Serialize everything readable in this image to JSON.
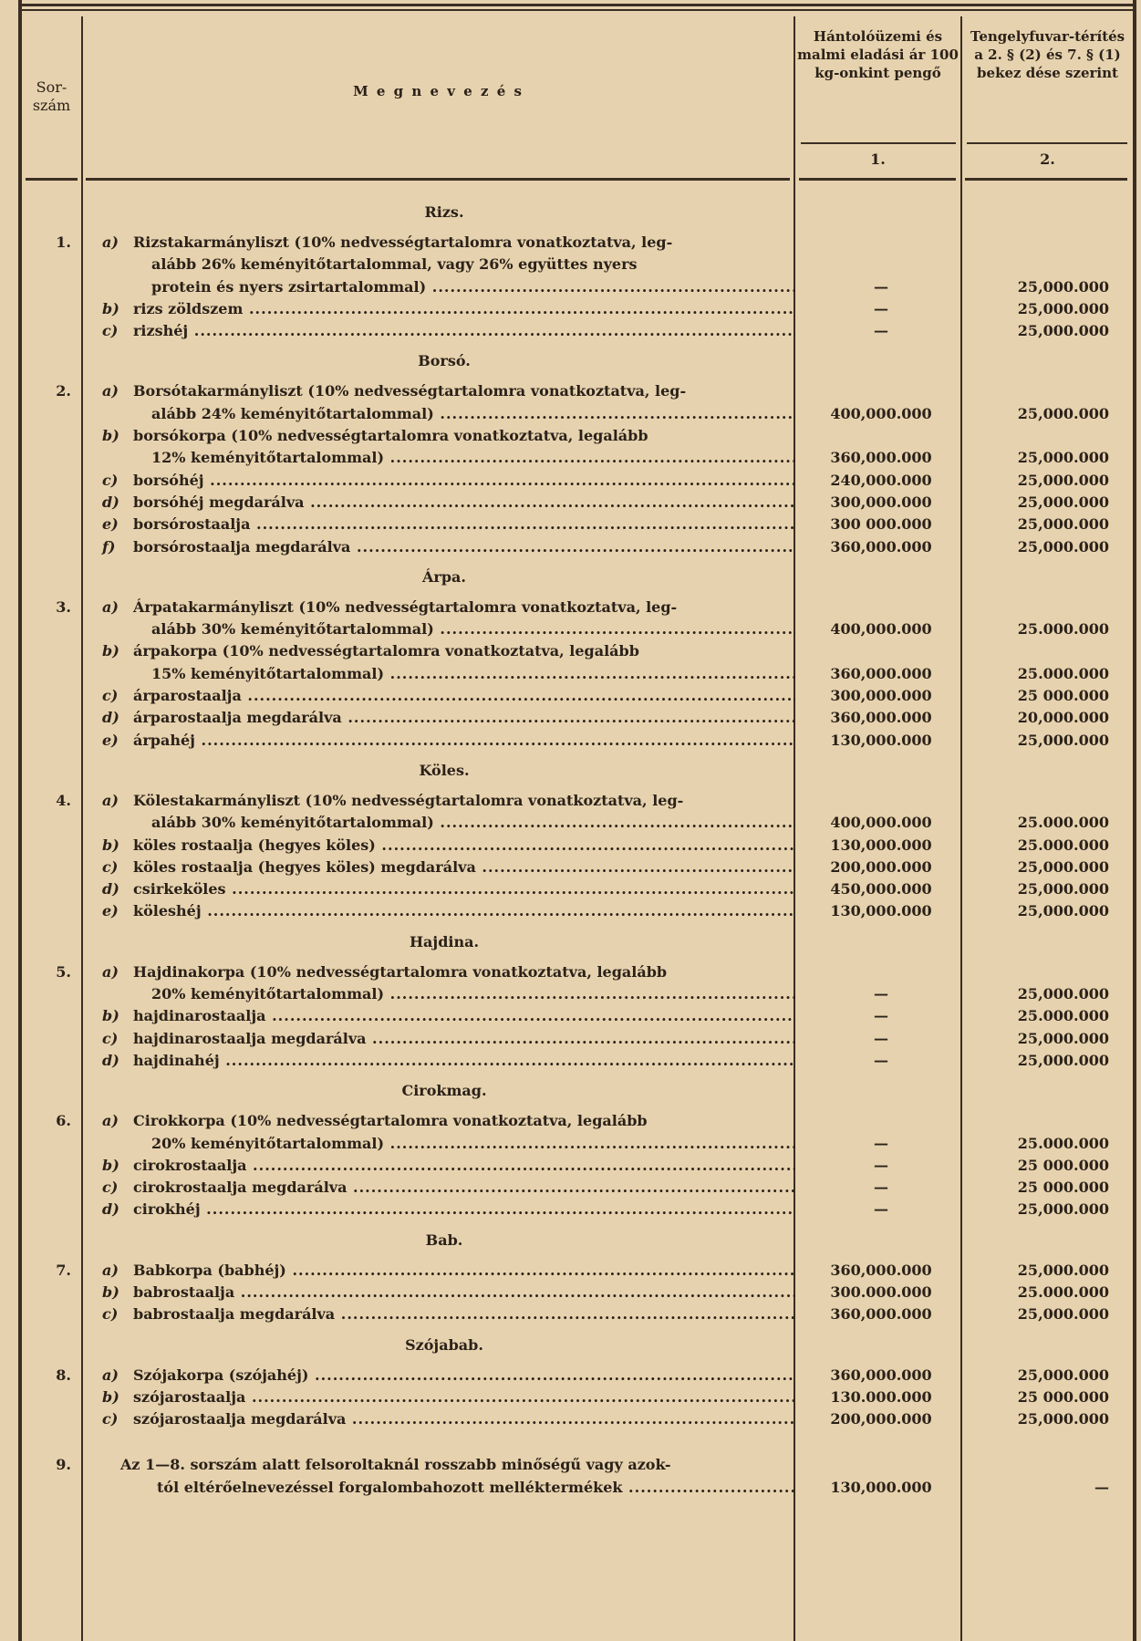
{
  "header": {
    "col_no": "Sor-\nszám",
    "col_name": "M e g n e v e z é s",
    "col1": "Hántolóüzemi és malmi eladási ár 100 kg-onkint pengő",
    "col2": "Tengelyfuvar-térítés a 2. § (2) és 7. § (1) bekez dése szerint",
    "col1_num": "1.",
    "col2_num": "2."
  },
  "sections": [
    {
      "title": "Rizs.",
      "number": "1.",
      "items": [
        {
          "letter": "a)",
          "lines": [
            "Rizstakarmányliszt (10% nedvességtartalomra vonatkoztatva, leg-",
            "alább 26% keményitőtartalommal, vagy 26% együttes nyers",
            "protein és nyers zsirtartalommal)"
          ],
          "col1": "—",
          "col2": "25,000.000"
        },
        {
          "letter": "b)",
          "lines": [
            "rizs zöldszem"
          ],
          "col1": "—",
          "col2": "25,000.000"
        },
        {
          "letter": "c)",
          "lines": [
            "rizshéj"
          ],
          "col1": "—",
          "col2": "25,000.000"
        }
      ]
    },
    {
      "title": "Borsó.",
      "number": "2.",
      "items": [
        {
          "letter": "a)",
          "lines": [
            "Borsótakarmányliszt (10% nedvességtartalomra vonatkoztatva, leg-",
            "alább 24% keményitőtartalommal)"
          ],
          "col1": "400,000.000",
          "col2": "25,000.000"
        },
        {
          "letter": "b)",
          "lines": [
            "borsókorpa (10% nedvességtartalomra vonatkoztatva, legalább",
            "12% keményitőtartalommal)"
          ],
          "col1": "360,000.000",
          "col2": "25,000.000"
        },
        {
          "letter": "c)",
          "lines": [
            "borsóhéj"
          ],
          "col1": "240,000.000",
          "col2": "25,000.000"
        },
        {
          "letter": "d)",
          "lines": [
            "borsóhéj megdarálva"
          ],
          "col1": "300,000.000",
          "col2": "25,000.000"
        },
        {
          "letter": "e)",
          "lines": [
            "borsórostaalja"
          ],
          "col1": "300 000.000",
          "col2": "25,000.000"
        },
        {
          "letter": "f)",
          "lines": [
            "borsórostaalja megdarálva"
          ],
          "col1": "360,000.000",
          "col2": "25,000.000"
        }
      ]
    },
    {
      "title": "Árpa.",
      "number": "3.",
      "items": [
        {
          "letter": "a)",
          "lines": [
            "Árpatakarmányliszt (10% nedvességtartalomra vonatkoztatva, leg-",
            "alább 30% keményitőtartalommal)"
          ],
          "col1": "400,000.000",
          "col2": "25.000.000"
        },
        {
          "letter": "b)",
          "lines": [
            "árpakorpa (10% nedvességtartalomra vonatkoztatva, legalább",
            "15% keményitőtartalommal)"
          ],
          "col1": "360,000.000",
          "col2": "25.000.000"
        },
        {
          "letter": "c)",
          "lines": [
            "árparostaalja"
          ],
          "col1": "300,000.000",
          "col2": "25 000.000"
        },
        {
          "letter": "d)",
          "lines": [
            "árparostaalja megdarálva"
          ],
          "col1": "360,000.000",
          "col2": "20,000.000"
        },
        {
          "letter": "e)",
          "lines": [
            "árpahéj"
          ],
          "col1": "130,000.000",
          "col2": "25,000.000"
        }
      ]
    },
    {
      "title": "Köles.",
      "number": "4.",
      "items": [
        {
          "letter": "a)",
          "lines": [
            "Kölestakarmányliszt (10% nedvességtartalomra vonatkoztatva, leg-",
            "alább 30% keményitőtartalommal)"
          ],
          "col1": "400,000.000",
          "col2": "25.000.000"
        },
        {
          "letter": "b)",
          "lines": [
            "köles rostaalja (hegyes köles)"
          ],
          "col1": "130,000.000",
          "col2": "25.000.000"
        },
        {
          "letter": "c)",
          "lines": [
            "köles rostaalja (hegyes köles) megdarálva"
          ],
          "col1": "200,000.000",
          "col2": "25,000.000"
        },
        {
          "letter": "d)",
          "lines": [
            "csirkeköles"
          ],
          "col1": "450,000.000",
          "col2": "25,000.000"
        },
        {
          "letter": "e)",
          "lines": [
            "köleshéj"
          ],
          "col1": "130,000.000",
          "col2": "25,000.000"
        }
      ]
    },
    {
      "title": "Hajdina.",
      "number": "5.",
      "items": [
        {
          "letter": "a)",
          "lines": [
            "Hajdinakorpa (10% nedvességtartalomra vonatkoztatva, legalább",
            "20% keményitőtartalommal)"
          ],
          "col1": "—",
          "col2": "25,000.000"
        },
        {
          "letter": "b)",
          "lines": [
            "hajdinarostaalja"
          ],
          "col1": "—",
          "col2": "25.000.000"
        },
        {
          "letter": "c)",
          "lines": [
            "hajdinarostaalja megdarálva"
          ],
          "col1": "—",
          "col2": "25,000.000"
        },
        {
          "letter": "d)",
          "lines": [
            "hajdinahéj"
          ],
          "col1": "—",
          "col2": "25,000.000"
        }
      ]
    },
    {
      "title": "Cirokmag.",
      "number": "6.",
      "items": [
        {
          "letter": "a)",
          "lines": [
            "Cirokkorpa (10% nedvességtartalomra vonatkoztatva, legalább",
            "20% keményitőtartalommal)"
          ],
          "col1": "—",
          "col2": "25.000.000"
        },
        {
          "letter": "b)",
          "lines": [
            "cirokrostaalja"
          ],
          "col1": "—",
          "col2": "25 000.000"
        },
        {
          "letter": "c)",
          "lines": [
            "cirokrostaalja megdarálva"
          ],
          "col1": "—",
          "col2": "25 000.000"
        },
        {
          "letter": "d)",
          "lines": [
            "cirokhéj"
          ],
          "col1": "—",
          "col2": "25,000.000"
        }
      ]
    },
    {
      "title": "Bab.",
      "number": "7.",
      "items": [
        {
          "letter": "a)",
          "lines": [
            "Babkorpa (babhéj)"
          ],
          "col1": "360,000.000",
          "col2": "25,000.000"
        },
        {
          "letter": "b)",
          "lines": [
            "babrostaalja"
          ],
          "col1": "300.000.000",
          "col2": "25.000.000"
        },
        {
          "letter": "c)",
          "lines": [
            "babrostaalja megdarálva"
          ],
          "col1": "360,000.000",
          "col2": "25,000.000"
        }
      ]
    },
    {
      "title": "Szójabab.",
      "number": "8.",
      "items": [
        {
          "letter": "a)",
          "lines": [
            "Szójakorpa (szójahéj)"
          ],
          "col1": "360,000.000",
          "col2": "25,000.000"
        },
        {
          "letter": "b)",
          "lines": [
            "szójarostaalja"
          ],
          "col1": "130.000.000",
          "col2": "25 000.000"
        },
        {
          "letter": "c)",
          "lines": [
            "szójarostaalja megdarálva"
          ],
          "col1": "200,000.000",
          "col2": "25,000.000"
        }
      ]
    },
    {
      "title": "",
      "number": "9.",
      "items": [
        {
          "letter": "",
          "lines": [
            "Az 1—8. sorszám alatt felsoroltaknál rosszabb minőségű vagy azok-",
            "tól eltérőelnevezéssel forgalombahozott melléktermékek"
          ],
          "col1": "130,000.000",
          "col2": "—"
        }
      ]
    }
  ]
}
